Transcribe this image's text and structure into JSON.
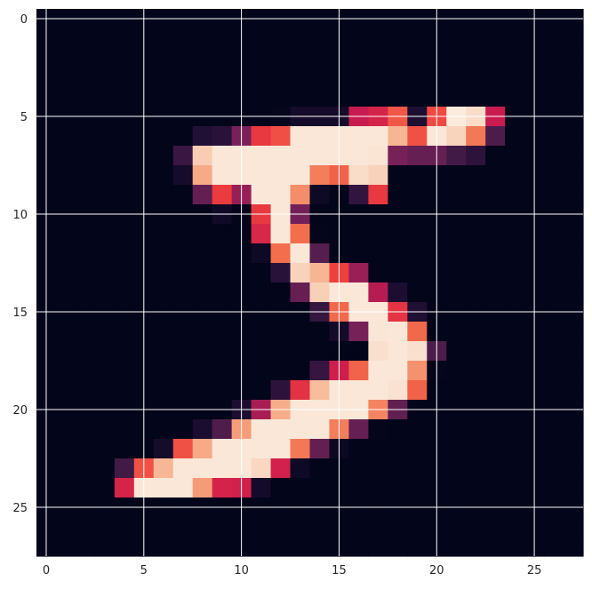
{
  "chart_data": {
    "type": "heatmap",
    "title": "",
    "xlabel": "",
    "ylabel": "",
    "colormap": "rocket",
    "xlim": [
      -0.5,
      27.5
    ],
    "ylim": [
      27.5,
      -0.5
    ],
    "xticks": [
      0,
      5,
      10,
      15,
      20,
      25
    ],
    "yticks": [
      0,
      5,
      10,
      15,
      20,
      25
    ],
    "grid": true,
    "value_range": [
      0,
      255
    ],
    "rows": 28,
    "cols": 28,
    "values": [
      [
        0,
        0,
        0,
        0,
        0,
        0,
        0,
        0,
        0,
        0,
        0,
        0,
        0,
        0,
        0,
        0,
        0,
        0,
        0,
        0,
        0,
        0,
        0,
        0,
        0,
        0,
        0,
        0
      ],
      [
        0,
        0,
        0,
        0,
        0,
        0,
        0,
        0,
        0,
        0,
        0,
        0,
        0,
        0,
        0,
        0,
        0,
        0,
        0,
        0,
        0,
        0,
        0,
        0,
        0,
        0,
        0,
        0
      ],
      [
        0,
        0,
        0,
        0,
        0,
        0,
        0,
        0,
        0,
        0,
        0,
        0,
        0,
        0,
        0,
        0,
        0,
        0,
        0,
        0,
        0,
        0,
        0,
        0,
        0,
        0,
        0,
        0
      ],
      [
        0,
        0,
        0,
        0,
        0,
        0,
        0,
        0,
        0,
        0,
        0,
        0,
        0,
        0,
        0,
        0,
        0,
        0,
        0,
        0,
        0,
        0,
        0,
        0,
        0,
        0,
        0,
        0
      ],
      [
        0,
        0,
        0,
        0,
        0,
        0,
        0,
        0,
        0,
        0,
        0,
        0,
        0,
        0,
        0,
        0,
        0,
        0,
        0,
        0,
        0,
        0,
        0,
        0,
        0,
        0,
        0,
        0
      ],
      [
        0,
        0,
        0,
        0,
        0,
        0,
        0,
        0,
        0,
        0,
        0,
        0,
        3,
        18,
        18,
        18,
        126,
        136,
        175,
        26,
        166,
        255,
        247,
        127,
        0,
        0,
        0,
        0
      ],
      [
        0,
        0,
        0,
        0,
        0,
        0,
        0,
        0,
        30,
        36,
        94,
        154,
        170,
        253,
        253,
        253,
        253,
        253,
        225,
        172,
        253,
        242,
        195,
        64,
        0,
        0,
        0,
        0
      ],
      [
        0,
        0,
        0,
        0,
        0,
        0,
        0,
        49,
        238,
        253,
        253,
        253,
        253,
        253,
        253,
        253,
        253,
        251,
        93,
        82,
        82,
        56,
        39,
        0,
        0,
        0,
        0,
        0
      ],
      [
        0,
        0,
        0,
        0,
        0,
        0,
        0,
        18,
        219,
        253,
        253,
        253,
        253,
        253,
        198,
        182,
        247,
        241,
        0,
        0,
        0,
        0,
        0,
        0,
        0,
        0,
        0,
        0
      ],
      [
        0,
        0,
        0,
        0,
        0,
        0,
        0,
        0,
        80,
        156,
        107,
        253,
        253,
        205,
        11,
        0,
        43,
        154,
        0,
        0,
        0,
        0,
        0,
        0,
        0,
        0,
        0,
        0
      ],
      [
        0,
        0,
        0,
        0,
        0,
        0,
        0,
        0,
        0,
        14,
        1,
        154,
        253,
        90,
        0,
        0,
        0,
        0,
        0,
        0,
        0,
        0,
        0,
        0,
        0,
        0,
        0,
        0
      ],
      [
        0,
        0,
        0,
        0,
        0,
        0,
        0,
        0,
        0,
        0,
        0,
        139,
        253,
        190,
        2,
        0,
        0,
        0,
        0,
        0,
        0,
        0,
        0,
        0,
        0,
        0,
        0,
        0
      ],
      [
        0,
        0,
        0,
        0,
        0,
        0,
        0,
        0,
        0,
        0,
        0,
        11,
        190,
        253,
        70,
        0,
        0,
        0,
        0,
        0,
        0,
        0,
        0,
        0,
        0,
        0,
        0,
        0
      ],
      [
        0,
        0,
        0,
        0,
        0,
        0,
        0,
        0,
        0,
        0,
        0,
        0,
        35,
        241,
        225,
        160,
        108,
        1,
        0,
        0,
        0,
        0,
        0,
        0,
        0,
        0,
        0,
        0
      ],
      [
        0,
        0,
        0,
        0,
        0,
        0,
        0,
        0,
        0,
        0,
        0,
        0,
        0,
        81,
        240,
        253,
        253,
        119,
        25,
        0,
        0,
        0,
        0,
        0,
        0,
        0,
        0,
        0
      ],
      [
        0,
        0,
        0,
        0,
        0,
        0,
        0,
        0,
        0,
        0,
        0,
        0,
        0,
        0,
        45,
        186,
        253,
        253,
        150,
        27,
        0,
        0,
        0,
        0,
        0,
        0,
        0,
        0
      ],
      [
        0,
        0,
        0,
        0,
        0,
        0,
        0,
        0,
        0,
        0,
        0,
        0,
        0,
        0,
        0,
        16,
        93,
        252,
        253,
        187,
        0,
        0,
        0,
        0,
        0,
        0,
        0,
        0
      ],
      [
        0,
        0,
        0,
        0,
        0,
        0,
        0,
        0,
        0,
        0,
        0,
        0,
        0,
        0,
        0,
        0,
        0,
        249,
        253,
        249,
        64,
        0,
        0,
        0,
        0,
        0,
        0,
        0
      ],
      [
        0,
        0,
        0,
        0,
        0,
        0,
        0,
        0,
        0,
        0,
        0,
        0,
        0,
        0,
        46,
        130,
        183,
        253,
        253,
        207,
        2,
        0,
        0,
        0,
        0,
        0,
        0,
        0
      ],
      [
        0,
        0,
        0,
        0,
        0,
        0,
        0,
        0,
        0,
        0,
        0,
        0,
        39,
        148,
        229,
        253,
        253,
        253,
        250,
        182,
        0,
        0,
        0,
        0,
        0,
        0,
        0,
        0
      ],
      [
        0,
        0,
        0,
        0,
        0,
        0,
        0,
        0,
        0,
        0,
        24,
        114,
        221,
        253,
        253,
        253,
        253,
        201,
        78,
        0,
        0,
        0,
        0,
        0,
        0,
        0,
        0,
        0
      ],
      [
        0,
        0,
        0,
        0,
        0,
        0,
        0,
        0,
        23,
        66,
        213,
        253,
        253,
        253,
        253,
        198,
        81,
        2,
        0,
        0,
        0,
        0,
        0,
        0,
        0,
        0,
        0,
        0
      ],
      [
        0,
        0,
        0,
        0,
        0,
        0,
        18,
        171,
        219,
        253,
        253,
        253,
        253,
        195,
        80,
        9,
        0,
        0,
        0,
        0,
        0,
        0,
        0,
        0,
        0,
        0,
        0,
        0
      ],
      [
        0,
        0,
        0,
        0,
        55,
        172,
        226,
        253,
        253,
        253,
        253,
        244,
        133,
        11,
        0,
        0,
        0,
        0,
        0,
        0,
        0,
        0,
        0,
        0,
        0,
        0,
        0,
        0
      ],
      [
        0,
        0,
        0,
        0,
        136,
        253,
        253,
        253,
        212,
        135,
        132,
        16,
        0,
        0,
        0,
        0,
        0,
        0,
        0,
        0,
        0,
        0,
        0,
        0,
        0,
        0,
        0,
        0
      ],
      [
        0,
        0,
        0,
        0,
        0,
        0,
        0,
        0,
        0,
        0,
        0,
        0,
        0,
        0,
        0,
        0,
        0,
        0,
        0,
        0,
        0,
        0,
        0,
        0,
        0,
        0,
        0,
        0
      ],
      [
        0,
        0,
        0,
        0,
        0,
        0,
        0,
        0,
        0,
        0,
        0,
        0,
        0,
        0,
        0,
        0,
        0,
        0,
        0,
        0,
        0,
        0,
        0,
        0,
        0,
        0,
        0,
        0
      ],
      [
        0,
        0,
        0,
        0,
        0,
        0,
        0,
        0,
        0,
        0,
        0,
        0,
        0,
        0,
        0,
        0,
        0,
        0,
        0,
        0,
        0,
        0,
        0,
        0,
        0,
        0,
        0,
        0
      ]
    ]
  }
}
